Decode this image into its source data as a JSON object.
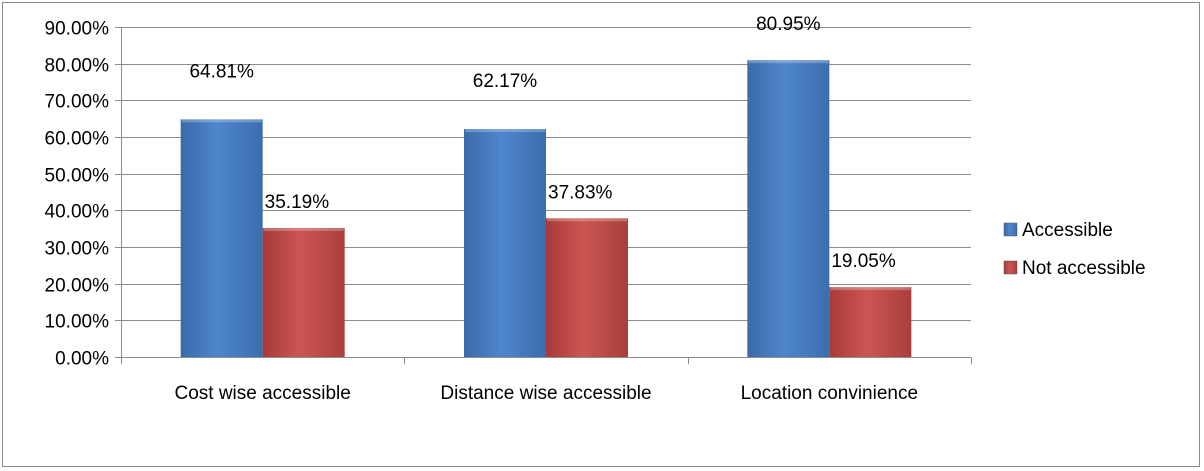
{
  "chart_data": {
    "type": "bar",
    "title": "",
    "xlabel": "",
    "ylabel": "",
    "categories": [
      "Cost wise accessible",
      "Distance wise accessible",
      "Location convinience"
    ],
    "series": [
      {
        "name": "Accessible",
        "values": [
          64.81,
          62.17,
          80.95
        ],
        "labels": [
          "64.81%",
          "62.17%",
          "80.95%"
        ],
        "color": "#4a7ebb"
      },
      {
        "name": "Not accessible",
        "values": [
          35.19,
          37.83,
          19.05
        ],
        "labels": [
          "35.19%",
          "37.83%",
          "19.05%"
        ],
        "color": "#be4b48"
      }
    ],
    "ylim": [
      0,
      90
    ],
    "y_ticks": [
      0,
      10,
      20,
      30,
      40,
      50,
      60,
      70,
      80,
      90
    ],
    "y_tick_labels": [
      "0.00%",
      "10.00%",
      "20.00%",
      "30.00%",
      "40.00%",
      "50.00%",
      "60.00%",
      "70.00%",
      "80.00%",
      "90.00%"
    ],
    "grid": true,
    "legend_position": "right"
  }
}
